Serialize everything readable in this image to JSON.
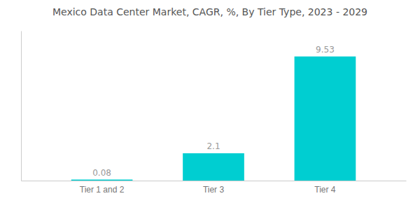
{
  "chart_data": {
    "type": "bar",
    "title": "Mexico Data Center Market, CAGR, %, By Tier Type, 2023 - 2029",
    "categories": [
      "Tier 1 and 2",
      "Tier 3",
      "Tier 4"
    ],
    "values": [
      0.08,
      2.1,
      9.53
    ],
    "color": "#00CED1",
    "ylim": [
      0,
      11.5
    ],
    "grid": false,
    "data_labels": true,
    "tick_labels": "x"
  }
}
